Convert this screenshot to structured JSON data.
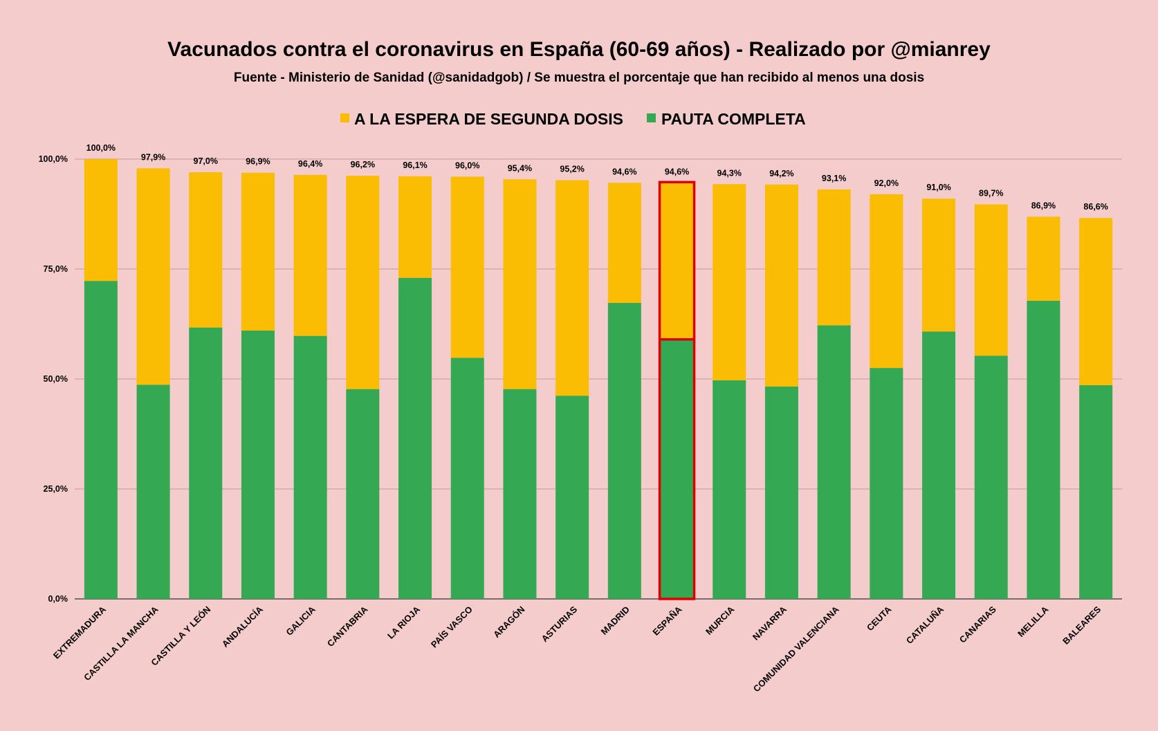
{
  "chart_data": {
    "type": "bar",
    "stacked": true,
    "title": "Vacunados contra el coronavirus en España (60-69 años) - Realizado por @mianrey",
    "subtitle": "Fuente - Ministerio de Sanidad (@sanidadgob) / Se muestra el porcentaje que han recibido al menos una dosis",
    "xlabel": "",
    "ylabel": "",
    "ylim": [
      0,
      100
    ],
    "yticks": [
      0,
      25,
      50,
      75,
      100
    ],
    "ytick_labels": [
      "0,0%",
      "25,0%",
      "50,0%",
      "75,0%",
      "100,0%"
    ],
    "grid": true,
    "legend_position": "top",
    "highlighted_category": "ESPAÑA",
    "colors": {
      "background": "#f4cccc",
      "pauta_completa": "#34a853",
      "espera_segunda": "#fbbc04",
      "highlight": "#e00000",
      "gridline": "#c49a9a",
      "axis": "#333333"
    },
    "categories": [
      "EXTREMADURA",
      "CASTILLA LA MANCHA",
      "CASTILLA Y LEÓN",
      "ANDALUCÍA",
      "GALICIA",
      "CANTABRIA",
      "LA RIOJA",
      "PAÍS VASCO",
      "ARAGÓN",
      "ASTURIAS",
      "MADRID",
      "ESPAÑA",
      "MURCIA",
      "NAVARRA",
      "COMUNIDAD VALENCIANA",
      "CEUTA",
      "CATALUÑA",
      "CANARIAS",
      "MELILLA",
      "BALEARES"
    ],
    "series": [
      {
        "name": "PAUTA COMPLETA",
        "color": "#34a853",
        "values": [
          72.3,
          48.7,
          61.7,
          61.0,
          59.8,
          47.7,
          73.0,
          54.8,
          47.7,
          46.2,
          67.3,
          59.0,
          49.7,
          48.3,
          62.2,
          52.5,
          60.8,
          55.3,
          67.8,
          48.6
        ]
      },
      {
        "name": "A LA ESPERA DE SEGUNDA DOSIS",
        "color": "#fbbc04",
        "values": [
          27.7,
          49.2,
          35.3,
          35.9,
          36.6,
          48.5,
          23.1,
          41.2,
          47.7,
          49.0,
          27.3,
          35.6,
          44.6,
          45.9,
          30.9,
          39.5,
          30.2,
          34.4,
          19.1,
          38.0
        ]
      }
    ],
    "total_labels": [
      "100,0%",
      "97,9%",
      "97,0%",
      "96,9%",
      "96,4%",
      "96,2%",
      "96,1%",
      "96,0%",
      "95,4%",
      "95,2%",
      "94,6%",
      "94,6%",
      "94,3%",
      "94,2%",
      "93,1%",
      "92,0%",
      "91,0%",
      "89,7%",
      "86,9%",
      "86,6%"
    ],
    "legend": [
      {
        "label": "A LA ESPERA DE SEGUNDA DOSIS",
        "color": "#fbbc04"
      },
      {
        "label": "PAUTA COMPLETA",
        "color": "#34a853"
      }
    ]
  }
}
